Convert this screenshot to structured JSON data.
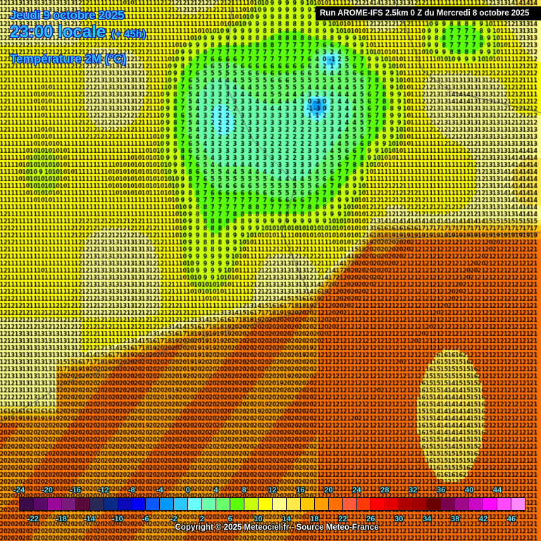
{
  "title": {
    "date": "Jeudi 9 octobre 2025",
    "time": "23:00 locale",
    "lead": "(+ 45h)",
    "parameter": "Température 2M (°C)"
  },
  "run_banner": "Run AROME-IFS 2.5km 0 Z du Mercredi 8 octobre 2025",
  "copyright": "Copyright © 2025 Meteociel.fr - Source Meteo-France",
  "colorbar": {
    "min": -24,
    "max": 48,
    "step": 2,
    "top_labels": [
      "-24",
      "-20",
      "-16",
      "-12",
      "-8",
      "-4",
      "0",
      "4",
      "8",
      "12",
      "16",
      "20",
      "24",
      "28",
      "32",
      "36",
      "40",
      "44"
    ],
    "bottom_labels": [
      "-22",
      "-18",
      "-14",
      "-10",
      "-6",
      "-2",
      "2",
      "6",
      "10",
      "14",
      "18",
      "22",
      "26",
      "30",
      "34",
      "38",
      "42",
      "46"
    ],
    "colors": [
      "#3a0a4a",
      "#5a0a6a",
      "#9a0a9a",
      "#7a1a7a",
      "#5a0a3a",
      "#2a2a5a",
      "#0a2a8a",
      "#0a0aba",
      "#0000ff",
      "#0a5aff",
      "#009aff",
      "#2ac8ff",
      "#6affff",
      "#6affaa",
      "#6aff6a",
      "#5aff0a",
      "#c8ff0a",
      "#ffff00",
      "#ffff8a",
      "#ffe84a",
      "#ffc800",
      "#ffa000",
      "#ff7000",
      "#ff5a3a",
      "#ff3a0a",
      "#ff0000",
      "#e00000",
      "#b00000",
      "#a00000",
      "#6a0000",
      "#7a0050",
      "#a00a8a",
      "#c80ac8",
      "#ff0aff",
      "#ff4aff",
      "#ff8aff"
    ]
  }
}
